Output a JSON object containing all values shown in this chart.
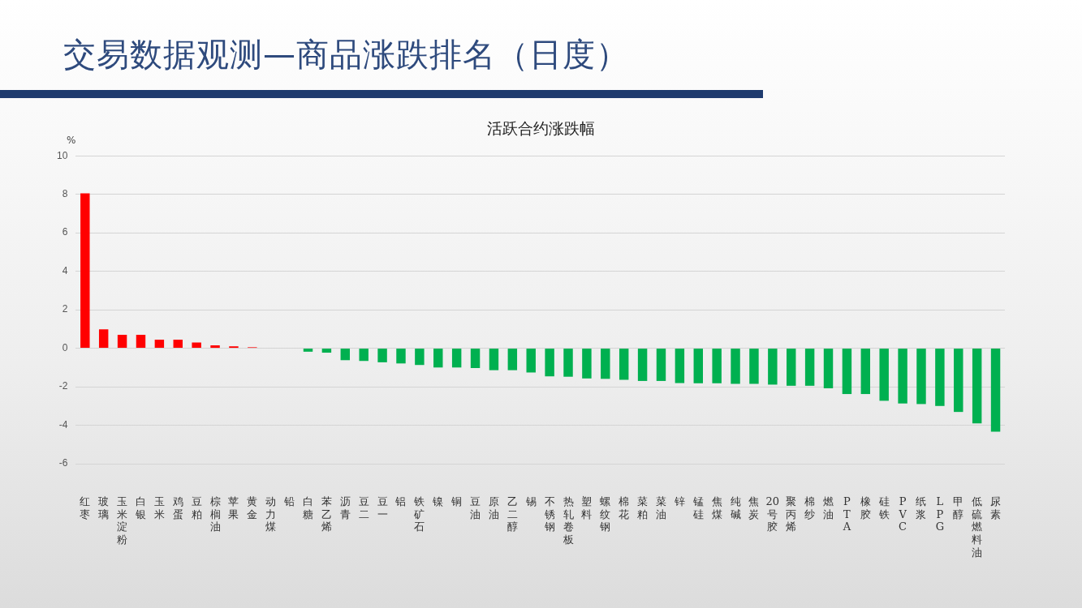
{
  "chart_data": {
    "type": "bar",
    "title": "交易数据观测—商品涨跌排名（日度）",
    "subtitle": "活跃合约涨跌幅",
    "ylabel": "%",
    "categories": [
      "红枣",
      "玻璃",
      "玉米淀粉",
      "白银",
      "玉米",
      "鸡蛋",
      "豆粕",
      "棕榈油",
      "苹果",
      "黄金",
      "动力煤",
      "铅",
      "白糖",
      "苯乙烯",
      "沥青",
      "豆二",
      "豆一",
      "铝",
      "铁矿石",
      "镍",
      "铜",
      "豆油",
      "原油",
      "乙二醇",
      "锡",
      "不锈钢",
      "热轧卷板",
      "塑料",
      "螺纹钢",
      "棉花",
      "菜粕",
      "菜油",
      "锌",
      "锰硅",
      "焦煤",
      "纯碱",
      "焦炭",
      "20号胶",
      "聚丙烯",
      "棉纱",
      "燃油",
      "PTA",
      "橡胶",
      "硅铁",
      "PVC",
      "纸浆",
      "LPG",
      "甲醇",
      "低硫燃料油",
      "尿素"
    ],
    "values": [
      8.05,
      0.98,
      0.7,
      0.7,
      0.45,
      0.45,
      0.3,
      0.15,
      0.1,
      0.05,
      0,
      0,
      -0.18,
      -0.23,
      -0.62,
      -0.66,
      -0.73,
      -0.79,
      -0.87,
      -1.0,
      -1.0,
      -1.03,
      -1.14,
      -1.14,
      -1.26,
      -1.46,
      -1.48,
      -1.57,
      -1.59,
      -1.64,
      -1.7,
      -1.7,
      -1.81,
      -1.82,
      -1.82,
      -1.85,
      -1.85,
      -1.89,
      -1.95,
      -1.95,
      -2.08,
      -2.38,
      -2.38,
      -2.73,
      -2.87,
      -2.9,
      -3.0,
      -3.31,
      -3.9,
      -4.34
    ],
    "colors": [
      "#ff0000",
      "#ff0000",
      "#ff0000",
      "#ff0000",
      "#ff0000",
      "#ff0000",
      "#ff0000",
      "#ff0000",
      "#ff0000",
      "#ff0000",
      "#ff0000",
      "#ff0000",
      "#00b050",
      "#00b050",
      "#00b050",
      "#00b050",
      "#00b050",
      "#00b050",
      "#00b050",
      "#00b050",
      "#00b050",
      "#00b050",
      "#00b050",
      "#00b050",
      "#00b050",
      "#00b050",
      "#00b050",
      "#00b050",
      "#00b050",
      "#00b050",
      "#00b050",
      "#00b050",
      "#00b050",
      "#00b050",
      "#00b050",
      "#00b050",
      "#00b050",
      "#00b050",
      "#00b050",
      "#00b050",
      "#00b050",
      "#00b050",
      "#00b050",
      "#00b050",
      "#00b050",
      "#00b050",
      "#00b050",
      "#00b050",
      "#00b050",
      "#00b050"
    ],
    "ylim": [
      -6,
      10
    ],
    "yticks": [
      -6,
      -4,
      -2,
      0,
      2,
      4,
      6,
      8,
      10
    ],
    "grid": "y",
    "legend": false
  }
}
